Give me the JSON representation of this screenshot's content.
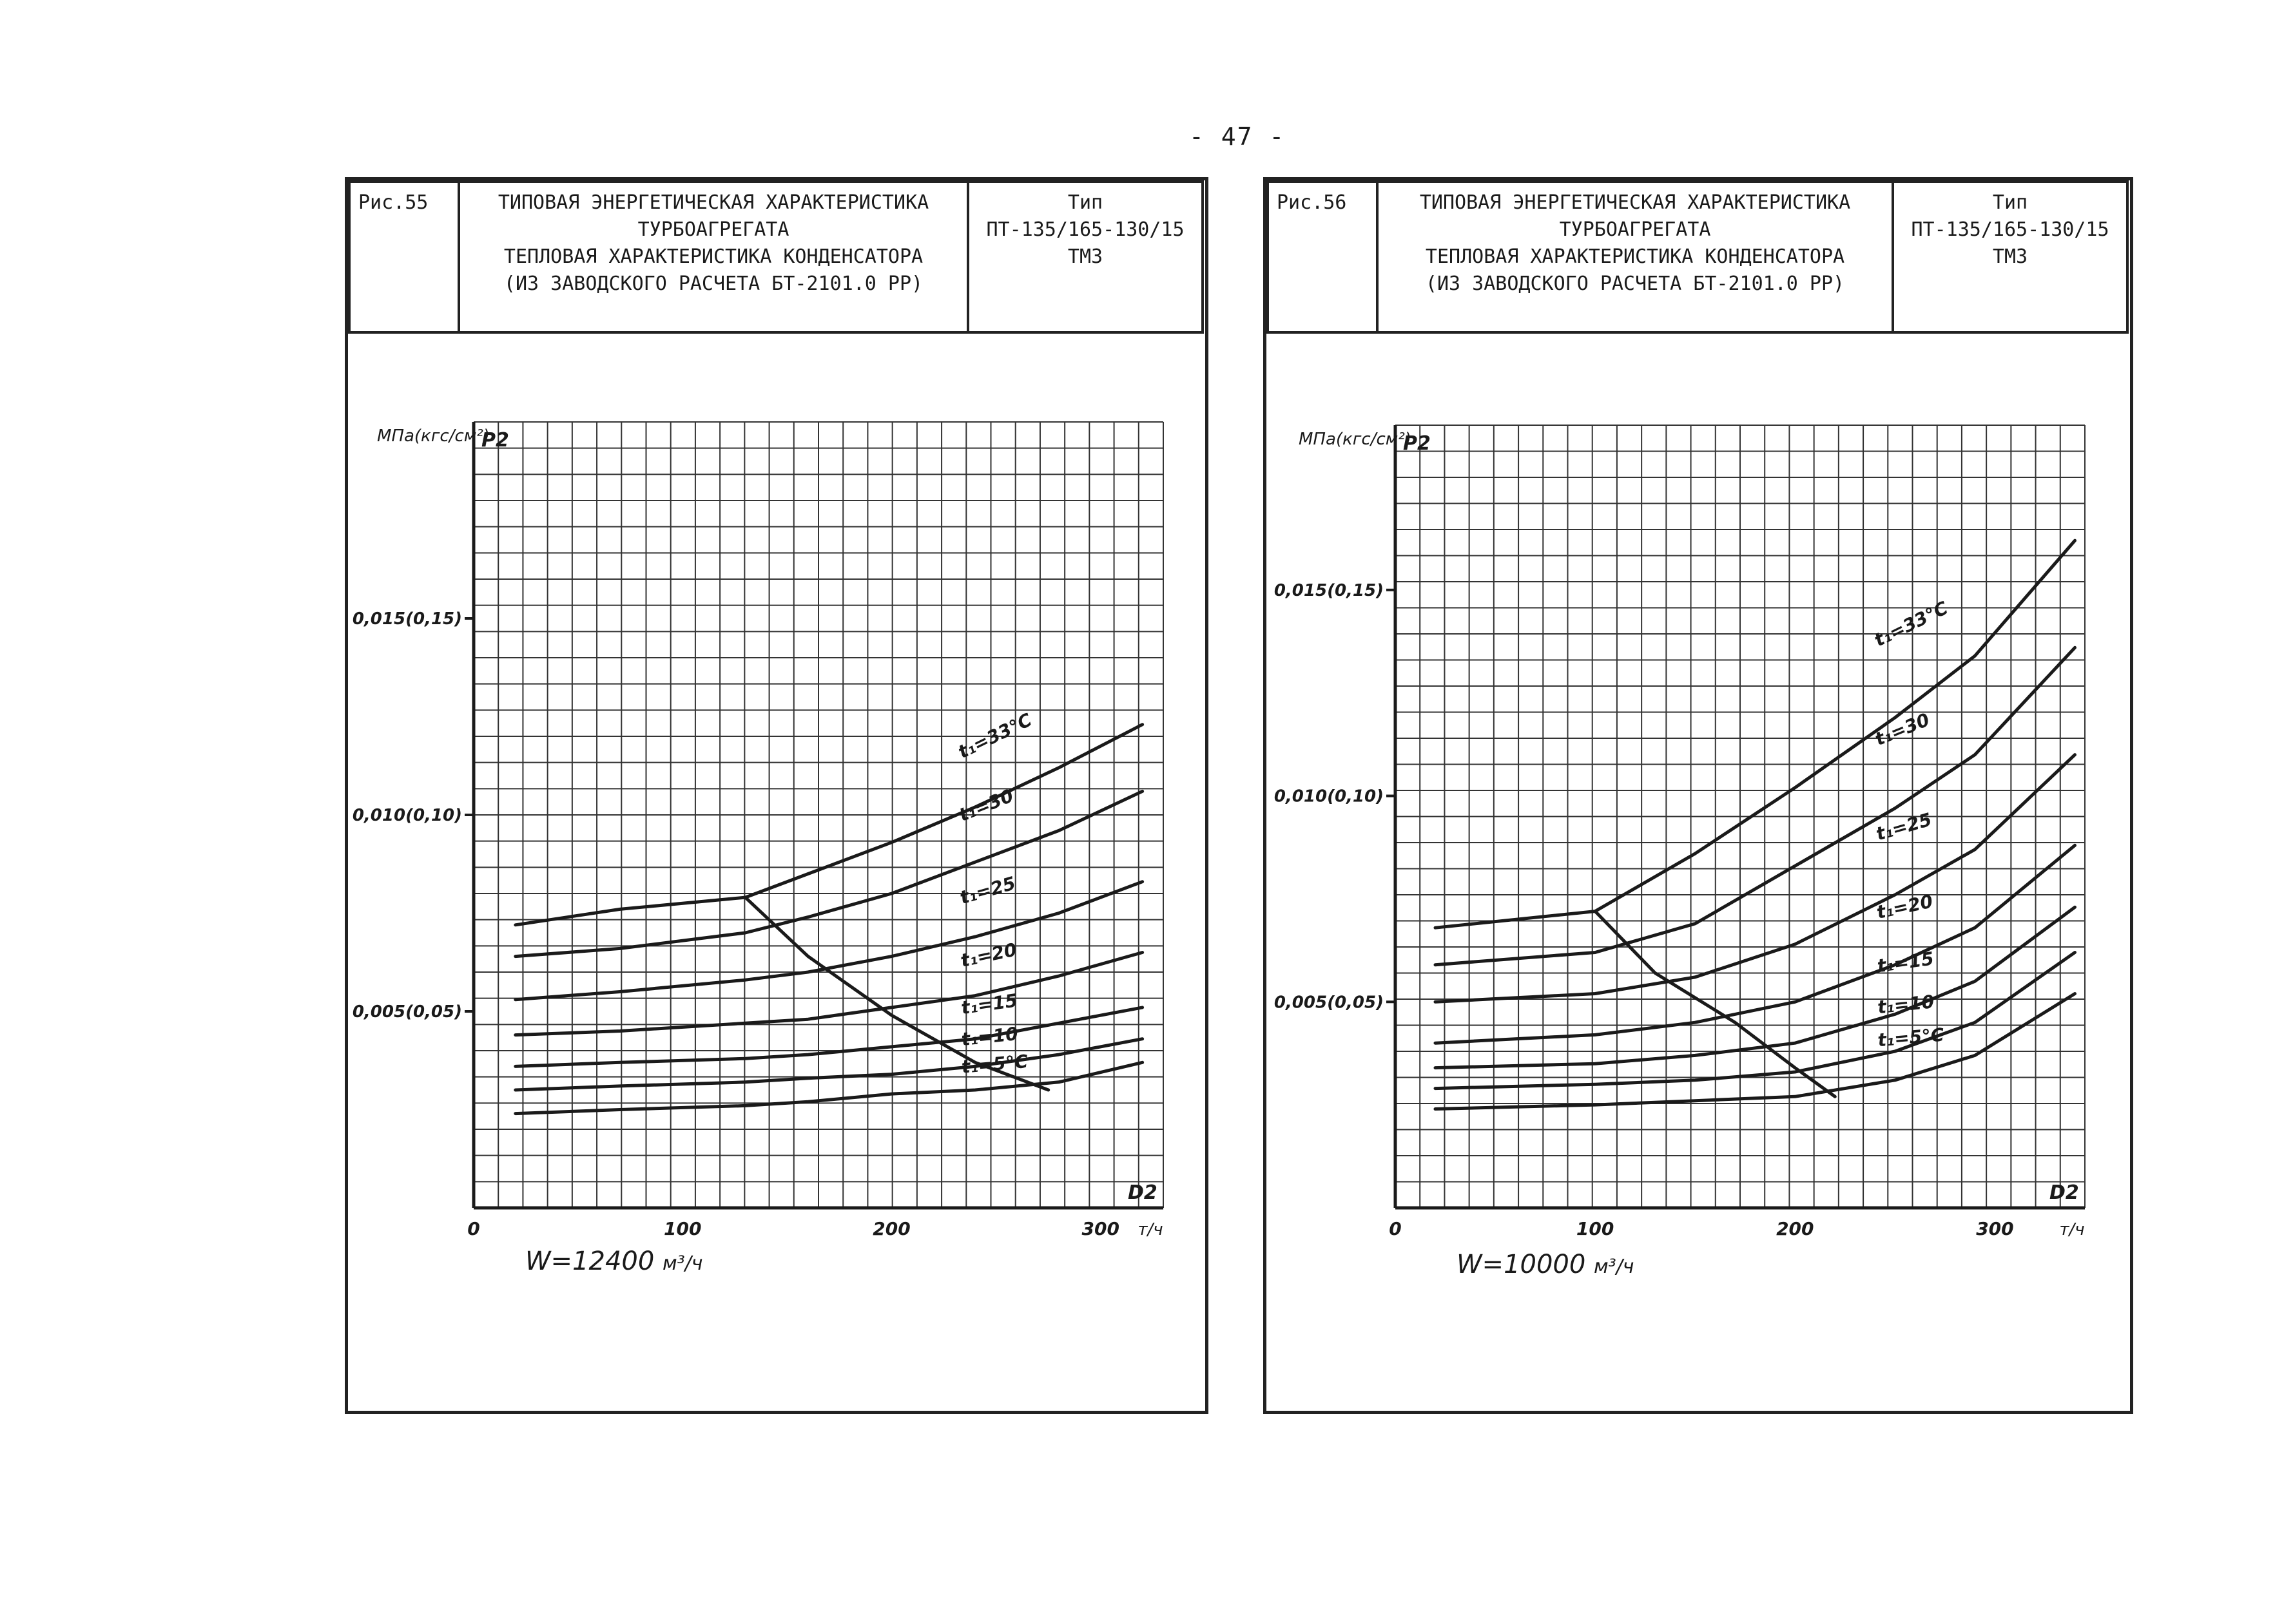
{
  "page": {
    "number": "- 47 -"
  },
  "figures": [
    {
      "fig_label": "Рис.55",
      "title_lines": [
        "ТИПОВАЯ ЭНЕРГЕТИЧЕСКАЯ ХАРАКТЕРИСТИКА",
        "ТУРБОАГРЕГАТА",
        "ТЕПЛОВАЯ ХАРАКТЕРИСТИКА КОНДЕНСАТОРА",
        "(ИЗ ЗАВОДСКОГО РАСЧЕТА БТ-2101.0 РР)"
      ],
      "type_lines": [
        "Тип",
        "ПТ-135/165-130/15",
        "ТМЗ"
      ],
      "flow_label": "W=12400",
      "flow_unit": "м³/ч"
    },
    {
      "fig_label": "Рис.56",
      "title_lines": [
        "ТИПОВАЯ ЭНЕРГЕТИЧЕСКАЯ ХАРАКТЕРИСТИКА",
        "ТУРБОАГРЕГАТА",
        "ТЕПЛОВАЯ ХАРАКТЕРИСТИКА КОНДЕНСАТОРА",
        "(ИЗ ЗАВОДСКОГО РАСЧЕТА БТ-2101.0 РР)"
      ],
      "type_lines": [
        "Тип",
        "ПТ-135/165-130/15",
        "ТМЗ"
      ],
      "flow_label": "W=10000",
      "flow_unit": "м³/ч"
    }
  ],
  "chart_data": [
    {
      "type": "line",
      "title": "Тепловая характеристика конденсатора, W=12400 м³/ч",
      "xlabel": "D2",
      "x_unit": "т/ч",
      "ylabel": "P2",
      "y_unit": "МПа(кгс/см²)",
      "xlim": [
        0,
        330
      ],
      "ylim": [
        0,
        0.02
      ],
      "x_ticks": [
        {
          "value": 0,
          "label": "0"
        },
        {
          "value": 100,
          "label": "100"
        },
        {
          "value": 200,
          "label": "200"
        },
        {
          "value": 300,
          "label": "300"
        }
      ],
      "y_ticks": [
        {
          "value": 0.005,
          "label": "0,005(0,05)"
        },
        {
          "value": 0.01,
          "label": "0,010(0,10)"
        },
        {
          "value": 0.015,
          "label": "0,015(0,15)"
        }
      ],
      "grid": true,
      "series": [
        {
          "name": "t1=33°C",
          "label": "t₁=33°C",
          "x": [
            20,
            70,
            130,
            160,
            200,
            240,
            280,
            320
          ],
          "y": [
            0.0072,
            0.0076,
            0.0079,
            0.0085,
            0.0093,
            0.0102,
            0.0112,
            0.0123
          ]
        },
        {
          "name": "t1=30",
          "label": "t₁=30",
          "x": [
            20,
            70,
            130,
            160,
            200,
            240,
            280,
            320
          ],
          "y": [
            0.0064,
            0.0066,
            0.007,
            0.0074,
            0.008,
            0.0088,
            0.0096,
            0.0106
          ]
        },
        {
          "name": "t1=25",
          "label": "t₁=25",
          "x": [
            20,
            70,
            130,
            160,
            200,
            240,
            280,
            320
          ],
          "y": [
            0.0053,
            0.0055,
            0.0058,
            0.006,
            0.0064,
            0.0069,
            0.0075,
            0.0083
          ]
        },
        {
          "name": "t1=20",
          "label": "t₁=20",
          "x": [
            20,
            70,
            130,
            160,
            200,
            240,
            280,
            320
          ],
          "y": [
            0.0044,
            0.0045,
            0.0047,
            0.0048,
            0.0051,
            0.0054,
            0.0059,
            0.0065
          ]
        },
        {
          "name": "t1=15",
          "label": "t₁=15",
          "x": [
            20,
            70,
            130,
            160,
            200,
            240,
            280,
            320
          ],
          "y": [
            0.0036,
            0.0037,
            0.0038,
            0.0039,
            0.0041,
            0.0043,
            0.0047,
            0.0051
          ]
        },
        {
          "name": "t1=10",
          "label": "t₁=10",
          "x": [
            20,
            70,
            130,
            160,
            200,
            240,
            280,
            320
          ],
          "y": [
            0.003,
            0.0031,
            0.0032,
            0.0033,
            0.0034,
            0.0036,
            0.0039,
            0.0043
          ]
        },
        {
          "name": "t1=5°C",
          "label": "t₁=5°C",
          "x": [
            20,
            70,
            130,
            160,
            200,
            240,
            280,
            320
          ],
          "y": [
            0.0024,
            0.0025,
            0.0026,
            0.0027,
            0.0029,
            0.003,
            0.0032,
            0.0037
          ]
        },
        {
          "name": "limit",
          "label": "",
          "x": [
            130,
            160,
            200,
            240,
            275
          ],
          "y": [
            0.0079,
            0.0064,
            0.0049,
            0.0037,
            0.003
          ]
        }
      ]
    },
    {
      "type": "line",
      "title": "Тепловая характеристика конденсатора, W=10000 м³/ч",
      "xlabel": "D2",
      "x_unit": "т/ч",
      "ylabel": "P2",
      "y_unit": "МПа(кгс/см²)",
      "xlim": [
        0,
        345
      ],
      "ylim": [
        0,
        0.019
      ],
      "x_ticks": [
        {
          "value": 0,
          "label": "0"
        },
        {
          "value": 100,
          "label": "100"
        },
        {
          "value": 200,
          "label": "200"
        },
        {
          "value": 300,
          "label": "300"
        }
      ],
      "y_ticks": [
        {
          "value": 0.005,
          "label": "0,005(0,05)"
        },
        {
          "value": 0.01,
          "label": "0,010(0,10)"
        },
        {
          "value": 0.015,
          "label": "0,015(0,15)"
        }
      ],
      "grid": true,
      "series": [
        {
          "name": "t1=33°C",
          "label": "t₁=33°C",
          "x": [
            20,
            100,
            150,
            200,
            250,
            290,
            340
          ],
          "y": [
            0.0068,
            0.0072,
            0.0086,
            0.0102,
            0.0119,
            0.0134,
            0.0162
          ]
        },
        {
          "name": "t1=30",
          "label": "t₁=30",
          "x": [
            20,
            100,
            150,
            200,
            250,
            290,
            340
          ],
          "y": [
            0.0059,
            0.0062,
            0.0069,
            0.0083,
            0.0097,
            0.011,
            0.0136
          ]
        },
        {
          "name": "t1=25",
          "label": "t₁=25",
          "x": [
            20,
            100,
            150,
            200,
            250,
            290,
            340
          ],
          "y": [
            0.005,
            0.0052,
            0.0056,
            0.0064,
            0.0076,
            0.0087,
            0.011
          ]
        },
        {
          "name": "t1=20",
          "label": "t₁=20",
          "x": [
            20,
            100,
            150,
            200,
            250,
            290,
            340
          ],
          "y": [
            0.004,
            0.0042,
            0.0045,
            0.005,
            0.0059,
            0.0068,
            0.0088
          ]
        },
        {
          "name": "t1=15",
          "label": "t₁=15",
          "x": [
            20,
            100,
            150,
            200,
            250,
            290,
            340
          ],
          "y": [
            0.0034,
            0.0035,
            0.0037,
            0.004,
            0.0047,
            0.0055,
            0.0073
          ]
        },
        {
          "name": "t1=10",
          "label": "t₁=10",
          "x": [
            20,
            100,
            150,
            200,
            250,
            290,
            340
          ],
          "y": [
            0.0029,
            0.003,
            0.0031,
            0.0033,
            0.0038,
            0.0045,
            0.0062
          ]
        },
        {
          "name": "t1=5°C",
          "label": "t₁=5°C",
          "x": [
            20,
            100,
            150,
            200,
            250,
            290,
            340
          ],
          "y": [
            0.0024,
            0.0025,
            0.0026,
            0.0027,
            0.0031,
            0.0037,
            0.0052
          ]
        },
        {
          "name": "limit",
          "label": "",
          "x": [
            100,
            130,
            170,
            200,
            220
          ],
          "y": [
            0.0072,
            0.0057,
            0.0045,
            0.0034,
            0.0027
          ]
        }
      ]
    }
  ],
  "colors": {
    "ink": "#1a1a1a",
    "grid": "#333333",
    "paper": "#ffffff"
  }
}
